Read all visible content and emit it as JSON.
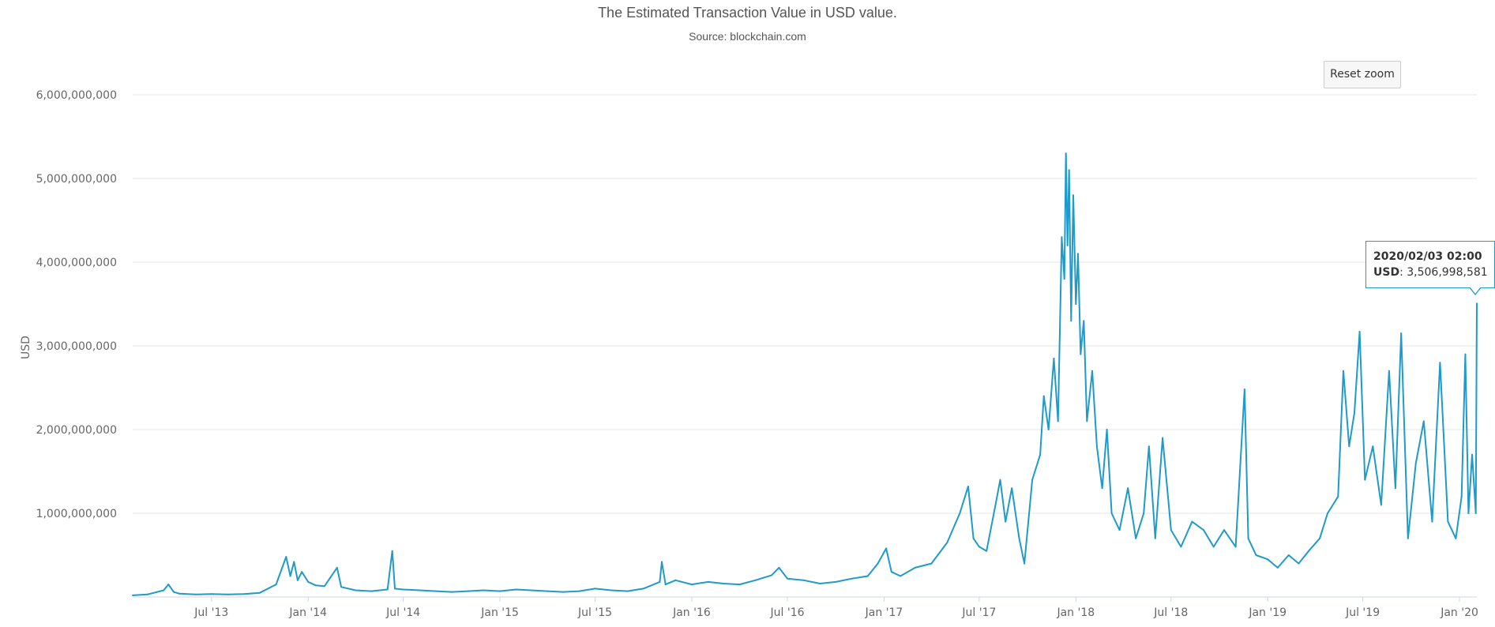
{
  "chart_data": {
    "type": "line",
    "title": "The Estimated Transaction Value in USD value.",
    "subtitle": "Source: blockchain.com",
    "xlabel": "",
    "ylabel": "USD",
    "ylim": [
      0,
      6000000000
    ],
    "xlim": [
      "2013-02-01",
      "2020-02-03"
    ],
    "grid": true,
    "legend": "none",
    "line_color": "#1f9ac9",
    "y_ticks": [
      {
        "value": 1000000000,
        "label": "1,000,000,000"
      },
      {
        "value": 2000000000,
        "label": "2,000,000,000"
      },
      {
        "value": 3000000000,
        "label": "3,000,000,000"
      },
      {
        "value": 4000000000,
        "label": "4,000,000,000"
      },
      {
        "value": 5000000000,
        "label": "5,000,000,000"
      },
      {
        "value": 6000000000,
        "label": "6,000,000,000"
      }
    ],
    "x_ticks": [
      {
        "date": "2013-07-01",
        "label": "Jul '13"
      },
      {
        "date": "2014-01-01",
        "label": "Jan '14"
      },
      {
        "date": "2014-07-01",
        "label": "Jul '14"
      },
      {
        "date": "2015-01-01",
        "label": "Jan '15"
      },
      {
        "date": "2015-07-01",
        "label": "Jul '15"
      },
      {
        "date": "2016-01-01",
        "label": "Jan '16"
      },
      {
        "date": "2016-07-01",
        "label": "Jul '16"
      },
      {
        "date": "2017-01-01",
        "label": "Jan '17"
      },
      {
        "date": "2017-07-01",
        "label": "Jul '17"
      },
      {
        "date": "2018-01-01",
        "label": "Jan '18"
      },
      {
        "date": "2018-07-01",
        "label": "Jul '18"
      },
      {
        "date": "2019-01-01",
        "label": "Jan '19"
      },
      {
        "date": "2019-07-01",
        "label": "Jul '19"
      },
      {
        "date": "2020-01-01",
        "label": "Jan '20"
      }
    ],
    "series": [
      {
        "points": [
          [
            "2013-02-01",
            20000000
          ],
          [
            "2013-03-01",
            30000000
          ],
          [
            "2013-04-01",
            80000000
          ],
          [
            "2013-04-10",
            150000000
          ],
          [
            "2013-04-20",
            60000000
          ],
          [
            "2013-05-01",
            40000000
          ],
          [
            "2013-06-01",
            30000000
          ],
          [
            "2013-07-01",
            35000000
          ],
          [
            "2013-08-01",
            30000000
          ],
          [
            "2013-09-01",
            35000000
          ],
          [
            "2013-10-01",
            50000000
          ],
          [
            "2013-11-01",
            150000000
          ],
          [
            "2013-11-20",
            480000000
          ],
          [
            "2013-11-28",
            250000000
          ],
          [
            "2013-12-05",
            420000000
          ],
          [
            "2013-12-12",
            200000000
          ],
          [
            "2013-12-20",
            300000000
          ],
          [
            "2014-01-01",
            180000000
          ],
          [
            "2014-01-15",
            140000000
          ],
          [
            "2014-02-01",
            130000000
          ],
          [
            "2014-02-25",
            350000000
          ],
          [
            "2014-03-05",
            120000000
          ],
          [
            "2014-04-01",
            80000000
          ],
          [
            "2014-05-01",
            70000000
          ],
          [
            "2014-06-01",
            90000000
          ],
          [
            "2014-06-10",
            550000000
          ],
          [
            "2014-06-15",
            100000000
          ],
          [
            "2014-07-01",
            90000000
          ],
          [
            "2014-08-01",
            80000000
          ],
          [
            "2014-09-01",
            70000000
          ],
          [
            "2014-10-01",
            60000000
          ],
          [
            "2014-11-01",
            70000000
          ],
          [
            "2014-12-01",
            80000000
          ],
          [
            "2015-01-01",
            70000000
          ],
          [
            "2015-02-01",
            90000000
          ],
          [
            "2015-03-01",
            80000000
          ],
          [
            "2015-04-01",
            70000000
          ],
          [
            "2015-05-01",
            60000000
          ],
          [
            "2015-06-01",
            70000000
          ],
          [
            "2015-07-01",
            100000000
          ],
          [
            "2015-08-01",
            80000000
          ],
          [
            "2015-09-01",
            70000000
          ],
          [
            "2015-10-01",
            100000000
          ],
          [
            "2015-11-01",
            180000000
          ],
          [
            "2015-11-05",
            420000000
          ],
          [
            "2015-11-12",
            150000000
          ],
          [
            "2015-12-01",
            200000000
          ],
          [
            "2016-01-01",
            150000000
          ],
          [
            "2016-02-01",
            180000000
          ],
          [
            "2016-03-01",
            160000000
          ],
          [
            "2016-04-01",
            150000000
          ],
          [
            "2016-05-01",
            200000000
          ],
          [
            "2016-06-01",
            260000000
          ],
          [
            "2016-06-15",
            350000000
          ],
          [
            "2016-07-01",
            220000000
          ],
          [
            "2016-08-01",
            200000000
          ],
          [
            "2016-09-01",
            160000000
          ],
          [
            "2016-10-01",
            180000000
          ],
          [
            "2016-11-01",
            220000000
          ],
          [
            "2016-12-01",
            250000000
          ],
          [
            "2016-12-20",
            400000000
          ],
          [
            "2017-01-05",
            580000000
          ],
          [
            "2017-01-15",
            300000000
          ],
          [
            "2017-02-01",
            250000000
          ],
          [
            "2017-03-01",
            350000000
          ],
          [
            "2017-04-01",
            400000000
          ],
          [
            "2017-05-01",
            650000000
          ],
          [
            "2017-05-25",
            1000000000
          ],
          [
            "2017-06-10",
            1320000000
          ],
          [
            "2017-06-20",
            700000000
          ],
          [
            "2017-07-01",
            600000000
          ],
          [
            "2017-07-15",
            550000000
          ],
          [
            "2017-08-01",
            1100000000
          ],
          [
            "2017-08-10",
            1400000000
          ],
          [
            "2017-08-20",
            900000000
          ],
          [
            "2017-09-01",
            1300000000
          ],
          [
            "2017-09-15",
            700000000
          ],
          [
            "2017-09-25",
            400000000
          ],
          [
            "2017-10-10",
            1400000000
          ],
          [
            "2017-10-25",
            1700000000
          ],
          [
            "2017-11-01",
            2400000000
          ],
          [
            "2017-11-10",
            2000000000
          ],
          [
            "2017-11-20",
            2850000000
          ],
          [
            "2017-11-28",
            2100000000
          ],
          [
            "2017-12-05",
            4300000000
          ],
          [
            "2017-12-10",
            3800000000
          ],
          [
            "2017-12-13",
            5300000000
          ],
          [
            "2017-12-16",
            4200000000
          ],
          [
            "2017-12-19",
            5100000000
          ],
          [
            "2017-12-23",
            3300000000
          ],
          [
            "2017-12-27",
            4800000000
          ],
          [
            "2018-01-01",
            3500000000
          ],
          [
            "2018-01-05",
            4100000000
          ],
          [
            "2018-01-10",
            2900000000
          ],
          [
            "2018-01-16",
            3300000000
          ],
          [
            "2018-01-22",
            2100000000
          ],
          [
            "2018-02-01",
            2700000000
          ],
          [
            "2018-02-10",
            1800000000
          ],
          [
            "2018-02-20",
            1300000000
          ],
          [
            "2018-03-01",
            2000000000
          ],
          [
            "2018-03-10",
            1000000000
          ],
          [
            "2018-03-25",
            800000000
          ],
          [
            "2018-04-10",
            1300000000
          ],
          [
            "2018-04-25",
            700000000
          ],
          [
            "2018-05-10",
            1000000000
          ],
          [
            "2018-05-20",
            1800000000
          ],
          [
            "2018-06-01",
            700000000
          ],
          [
            "2018-06-15",
            1900000000
          ],
          [
            "2018-07-01",
            800000000
          ],
          [
            "2018-07-20",
            600000000
          ],
          [
            "2018-08-10",
            900000000
          ],
          [
            "2018-09-01",
            800000000
          ],
          [
            "2018-09-20",
            600000000
          ],
          [
            "2018-10-10",
            800000000
          ],
          [
            "2018-11-01",
            600000000
          ],
          [
            "2018-11-18",
            2480000000
          ],
          [
            "2018-11-25",
            700000000
          ],
          [
            "2018-12-10",
            500000000
          ],
          [
            "2019-01-01",
            450000000
          ],
          [
            "2019-01-20",
            350000000
          ],
          [
            "2019-02-10",
            500000000
          ],
          [
            "2019-03-01",
            400000000
          ],
          [
            "2019-03-20",
            550000000
          ],
          [
            "2019-04-10",
            700000000
          ],
          [
            "2019-04-25",
            1000000000
          ],
          [
            "2019-05-15",
            1200000000
          ],
          [
            "2019-05-25",
            2700000000
          ],
          [
            "2019-06-05",
            1800000000
          ],
          [
            "2019-06-15",
            2200000000
          ],
          [
            "2019-06-25",
            3170000000
          ],
          [
            "2019-07-05",
            1400000000
          ],
          [
            "2019-07-20",
            1800000000
          ],
          [
            "2019-08-05",
            1100000000
          ],
          [
            "2019-08-20",
            2700000000
          ],
          [
            "2019-09-01",
            1300000000
          ],
          [
            "2019-09-12",
            3150000000
          ],
          [
            "2019-09-25",
            700000000
          ],
          [
            "2019-10-10",
            1600000000
          ],
          [
            "2019-10-25",
            2100000000
          ],
          [
            "2019-11-10",
            900000000
          ],
          [
            "2019-11-25",
            2800000000
          ],
          [
            "2019-12-10",
            900000000
          ],
          [
            "2019-12-25",
            700000000
          ],
          [
            "2020-01-05",
            1200000000
          ],
          [
            "2020-01-12",
            2900000000
          ],
          [
            "2020-01-18",
            1000000000
          ],
          [
            "2020-01-25",
            1700000000
          ],
          [
            "2020-02-01",
            1000000000
          ],
          [
            "2020-02-03",
            3506998581
          ]
        ]
      }
    ],
    "tooltip": {
      "date": "2020/02/03 02:00",
      "series_label": "USD",
      "value": "3,506,998,581"
    }
  },
  "controls": {
    "reset_zoom_label": "Reset zoom"
  }
}
